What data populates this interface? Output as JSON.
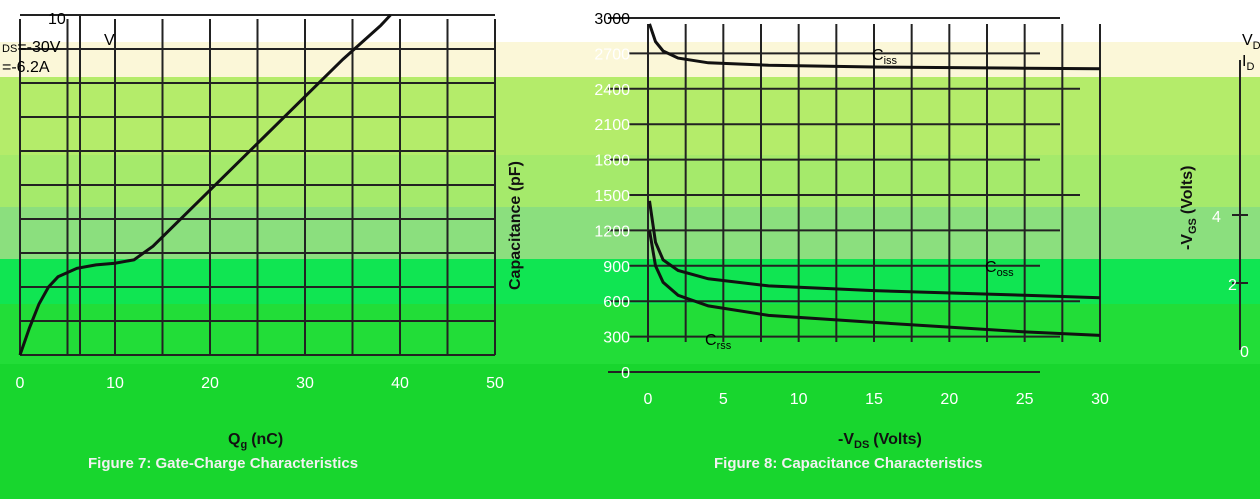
{
  "colors": {
    "band_top": "#fbf7d8",
    "band_light": "#b4ec6a",
    "band_mid": "#94e86b",
    "band_green": "#5ddc6e",
    "band_bright": "#10e552",
    "band_bottom": "#18d62e",
    "curve": "#111111"
  },
  "chart_data": [
    {
      "type": "line",
      "id": "figure7",
      "title": "",
      "xlabel": "Q",
      "xlabel_sub": "g",
      "xlabel_unit": "(nC)",
      "ylabel": "",
      "xlim": [
        0,
        50
      ],
      "ylim": [
        0,
        10
      ],
      "x_ticks": [
        "0",
        "10",
        "20",
        "30",
        "40",
        "50"
      ],
      "y_ticks": [
        "10"
      ],
      "annotations": [
        "V",
        "DS",
        "=-30V",
        "=-6.2A"
      ],
      "caption": "Figure 7: Gate-Charge Characteristics",
      "series": [
        {
          "points": [
            [
              0,
              0
            ],
            [
              1,
              0.8
            ],
            [
              2,
              1.5
            ],
            [
              3,
              2.0
            ],
            [
              4,
              2.3
            ],
            [
              6,
              2.55
            ],
            [
              8,
              2.65
            ],
            [
              10,
              2.7
            ],
            [
              12,
              2.8
            ],
            [
              14,
              3.2
            ],
            [
              18,
              4.3
            ],
            [
              22,
              5.4
            ],
            [
              26,
              6.5
            ],
            [
              30,
              7.6
            ],
            [
              34,
              8.7
            ],
            [
              38,
              9.7
            ],
            [
              39,
              10
            ]
          ]
        }
      ]
    },
    {
      "type": "line",
      "id": "figure8",
      "title": "",
      "xlabel": "-V",
      "xlabel_sub": "DS",
      "xlabel_unit": "(Volts)",
      "ylabel": "Capacitance (pF)",
      "xlim": [
        0,
        30
      ],
      "ylim": [
        0,
        3000
      ],
      "x_ticks": [
        "0",
        "5",
        "10",
        "15",
        "20",
        "25",
        "30"
      ],
      "y_ticks": [
        "3000",
        "2700",
        "2400",
        "2100",
        "1800",
        "1500",
        "1200",
        "900",
        "600",
        "300",
        "0"
      ],
      "caption": "Figure 8: Capacitance Characteristics",
      "series": [
        {
          "name": "C",
          "name_sub": "iss",
          "points": [
            [
              0.1,
              2950
            ],
            [
              0.5,
              2800
            ],
            [
              1,
              2720
            ],
            [
              2,
              2660
            ],
            [
              4,
              2620
            ],
            [
              8,
              2600
            ],
            [
              15,
              2585
            ],
            [
              25,
              2575
            ],
            [
              30,
              2570
            ]
          ]
        },
        {
          "name": "C",
          "name_sub": "oss",
          "points": [
            [
              0.1,
              1450
            ],
            [
              0.5,
              1100
            ],
            [
              1,
              950
            ],
            [
              2,
              860
            ],
            [
              4,
              790
            ],
            [
              8,
              730
            ],
            [
              15,
              690
            ],
            [
              25,
              650
            ],
            [
              30,
              630
            ]
          ]
        },
        {
          "name": "C",
          "name_sub": "rss",
          "points": [
            [
              0.1,
              1200
            ],
            [
              0.5,
              900
            ],
            [
              1,
              760
            ],
            [
              2,
              650
            ],
            [
              4,
              560
            ],
            [
              8,
              480
            ],
            [
              15,
              420
            ],
            [
              25,
              340
            ],
            [
              30,
              310
            ]
          ]
        }
      ]
    }
  ],
  "right_axis": {
    "label": "-V",
    "label_sub": "GS",
    "label_unit": "(Volts)",
    "ticks": [
      "4",
      "2",
      "0"
    ],
    "annotation_top": "V",
    "annotation_top_sub": "D",
    "annotation_bottom": "I",
    "annotation_bottom_sub": "D"
  }
}
